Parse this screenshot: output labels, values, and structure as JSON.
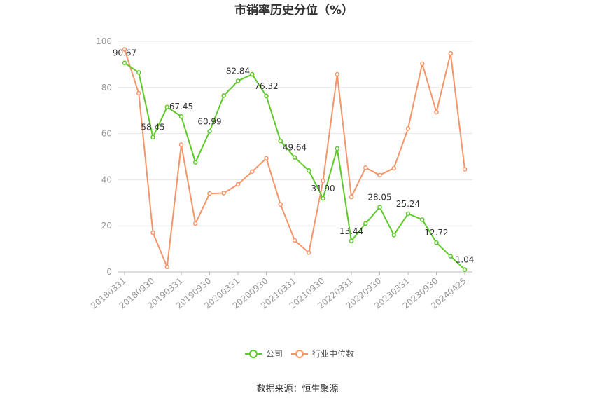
{
  "chart_data": {
    "type": "line",
    "title": "市销率历史分位（%）",
    "source": "数据来源：恒生聚源",
    "ylim": [
      0,
      100
    ],
    "yticks": [
      0,
      20,
      40,
      60,
      80,
      100
    ],
    "grid": true,
    "legend_position": "bottom",
    "xtick_labels": [
      "20180331",
      "20180930",
      "20190331",
      "20190930",
      "20200331",
      "20200930",
      "20210331",
      "20210930",
      "20220331",
      "20220930",
      "20230331",
      "20230930",
      "20240425"
    ],
    "x": [
      "20180331",
      "20180630",
      "20180930",
      "20181231",
      "20190331",
      "20190630",
      "20190930",
      "20191231",
      "20200331",
      "20200630",
      "20200930",
      "20201231",
      "20210331",
      "20210630",
      "20210930",
      "20211231",
      "20220331",
      "20220630",
      "20220930",
      "20221231",
      "20230331",
      "20230630",
      "20230930",
      "20231231",
      "20240425"
    ],
    "series": [
      {
        "name": "公司",
        "color": "#5ec92a",
        "values": [
          90.67,
          86.5,
          58.45,
          71.5,
          67.45,
          47.5,
          60.99,
          76.5,
          82.84,
          85.7,
          76.32,
          56.8,
          49.64,
          44.0,
          31.9,
          53.5,
          13.44,
          21.0,
          28.05,
          16.0,
          25.24,
          22.7,
          12.72,
          6.8,
          1.04
        ],
        "labels": [
          "90.67",
          "",
          "58.45",
          "",
          "67.45",
          "",
          "60.99",
          "",
          "82.84",
          "",
          "76.32",
          "",
          "49.64",
          "",
          "31.90",
          "",
          "13.44",
          "",
          "28.05",
          "",
          "25.24",
          "",
          "12.72",
          "",
          "1.04"
        ]
      },
      {
        "name": "行业中位数",
        "color": "#f4956a",
        "values": [
          96.5,
          77.5,
          17.0,
          2.2,
          55.2,
          21.0,
          34.0,
          34.2,
          38.0,
          43.5,
          49.3,
          29.3,
          13.7,
          8.4,
          39.5,
          85.7,
          32.5,
          45.2,
          42.0,
          45.0,
          62.2,
          90.3,
          69.3,
          94.8,
          44.5
        ]
      }
    ]
  }
}
